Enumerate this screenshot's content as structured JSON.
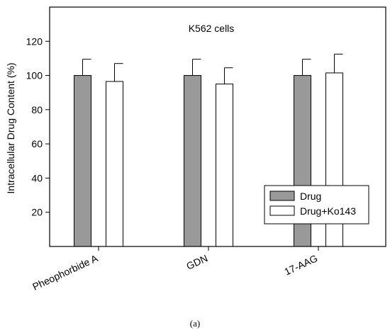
{
  "chart_data": {
    "type": "bar",
    "title": "K562 cells",
    "xlabel": "",
    "ylabel": "Intracellular Drug Content (%)",
    "ylim": [
      0,
      140
    ],
    "yticks": [
      20,
      40,
      60,
      80,
      100,
      120
    ],
    "categories": [
      "Pheophorbide A",
      "GDN",
      "17-AAG"
    ],
    "series": [
      {
        "name": "Drug",
        "values": [
          100,
          100,
          100
        ],
        "errors": [
          9.5,
          9.5,
          9.5
        ],
        "color": "#999999"
      },
      {
        "name": "Drug+Ko143",
        "values": [
          96.5,
          95,
          101.5
        ],
        "errors": [
          10.5,
          9.5,
          11
        ],
        "color": "#ffffff"
      }
    ],
    "legend_position": "bottom-right",
    "grid": false
  },
  "caption": "(a)"
}
